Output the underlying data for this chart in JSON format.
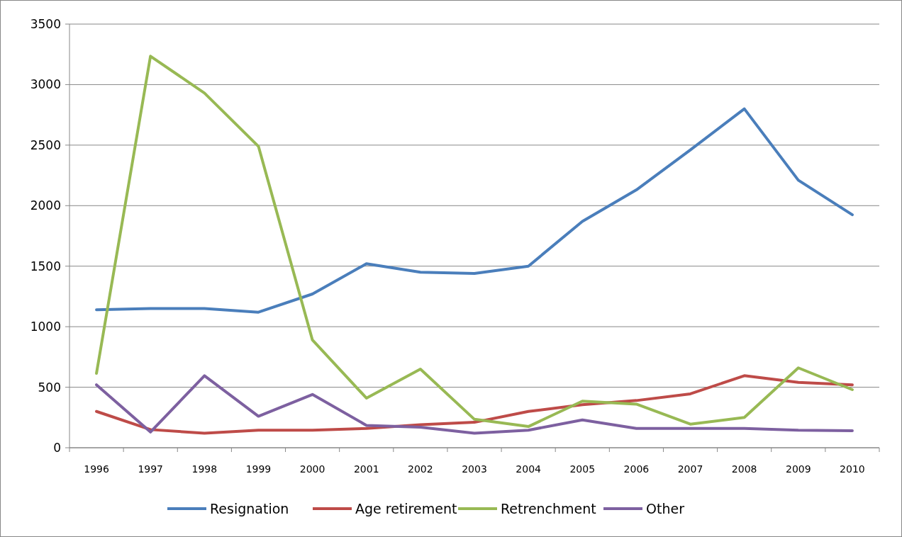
{
  "chart_data": {
    "type": "line",
    "categories": [
      "1996",
      "1997",
      "1998",
      "1999",
      "2000",
      "2001",
      "2002",
      "2003",
      "2004",
      "2005",
      "2006",
      "2007",
      "2008",
      "2009",
      "2010"
    ],
    "series": [
      {
        "name": "Resignation",
        "color": "#4a7ebb",
        "values": [
          1140,
          1150,
          1150,
          1120,
          1270,
          1520,
          1450,
          1440,
          1500,
          1870,
          2130,
          2460,
          2800,
          2210,
          1925
        ]
      },
      {
        "name": "Age retirement",
        "color": "#be4b48",
        "values": [
          300,
          150,
          120,
          145,
          145,
          160,
          190,
          210,
          300,
          355,
          390,
          445,
          595,
          540,
          520
        ]
      },
      {
        "name": "Retrenchment",
        "color": "#98b954",
        "values": [
          615,
          3235,
          2930,
          2490,
          890,
          410,
          650,
          235,
          175,
          385,
          360,
          195,
          250,
          660,
          480
        ]
      },
      {
        "name": "Other",
        "color": "#7d60a0",
        "values": [
          520,
          130,
          595,
          260,
          440,
          185,
          170,
          120,
          145,
          230,
          160,
          160,
          160,
          145,
          140
        ]
      }
    ],
    "ylim": [
      0,
      3500
    ],
    "yticks": [
      0,
      500,
      1000,
      1500,
      2000,
      2500,
      3000,
      3500
    ],
    "grid": "y",
    "legend": "bottom",
    "marker": "none",
    "line_style": "solid"
  }
}
